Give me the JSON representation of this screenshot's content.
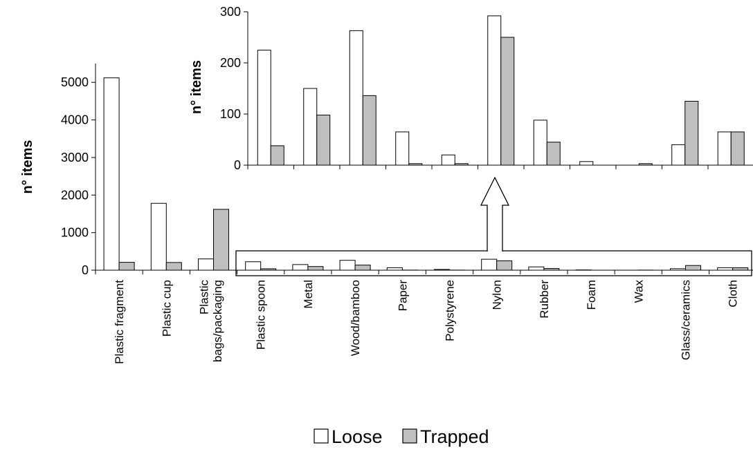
{
  "chart_data": [
    {
      "id": "main",
      "type": "bar",
      "ylabel": "n° items",
      "ylim": [
        0,
        5500
      ],
      "yticks": [
        0,
        1000,
        2000,
        3000,
        4000,
        5000
      ],
      "categories": [
        "Plastic fragment",
        "Plastic cup",
        "Plastic bags/packaging",
        "Plastic spoon",
        "Metal",
        "Wood/bamboo",
        "Paper",
        "Polystyrene",
        "Nylon",
        "Rubber",
        "Foam",
        "Wax",
        "Glass/ceramics",
        "Cloth"
      ],
      "category_lines": [
        [
          "Plastic fragment"
        ],
        [
          "Plastic cup"
        ],
        [
          "Plastic",
          "bags/packaging"
        ],
        [
          "Plastic spoon"
        ],
        [
          "Metal"
        ],
        [
          "Wood/bamboo"
        ],
        [
          "Paper"
        ],
        [
          "Polystyrene"
        ],
        [
          "Nylon"
        ],
        [
          "Rubber"
        ],
        [
          "Foam"
        ],
        [
          "Wax"
        ],
        [
          "Glass/ceramics"
        ],
        [
          "Cloth"
        ]
      ],
      "series": [
        {
          "name": "Loose",
          "color": "#ffffff",
          "values": [
            5120,
            1780,
            300,
            225,
            150,
            263,
            65,
            20,
            292,
            88,
            7,
            0,
            40,
            65
          ]
        },
        {
          "name": "Trapped",
          "color": "#bfbfbf",
          "values": [
            210,
            205,
            1620,
            38,
            98,
            136,
            3,
            3,
            250,
            45,
            0,
            3,
            125,
            65
          ]
        }
      ],
      "grid": false
    },
    {
      "id": "inset",
      "type": "bar",
      "ylabel": "n° items",
      "ylim": [
        0,
        300
      ],
      "yticks": [
        0,
        100,
        200,
        300
      ],
      "categories": [
        "Plastic spoon",
        "Metal",
        "Wood/bamboo",
        "Paper",
        "Polystyrene",
        "Nylon",
        "Rubber",
        "Foam",
        "Wax",
        "Glass/ceramics",
        "Cloth"
      ],
      "series": [
        {
          "name": "Loose",
          "color": "#ffffff",
          "values": [
            225,
            150,
            263,
            65,
            20,
            292,
            88,
            7,
            0,
            40,
            65
          ]
        },
        {
          "name": "Trapped",
          "color": "#bfbfbf",
          "values": [
            38,
            98,
            136,
            3,
            3,
            250,
            45,
            0,
            3,
            125,
            65
          ]
        }
      ],
      "grid": false
    }
  ],
  "legend": {
    "position": "bottom-center",
    "items": [
      {
        "label": "Loose",
        "color": "#ffffff"
      },
      {
        "label": "Trapped",
        "color": "#bfbfbf"
      }
    ]
  }
}
